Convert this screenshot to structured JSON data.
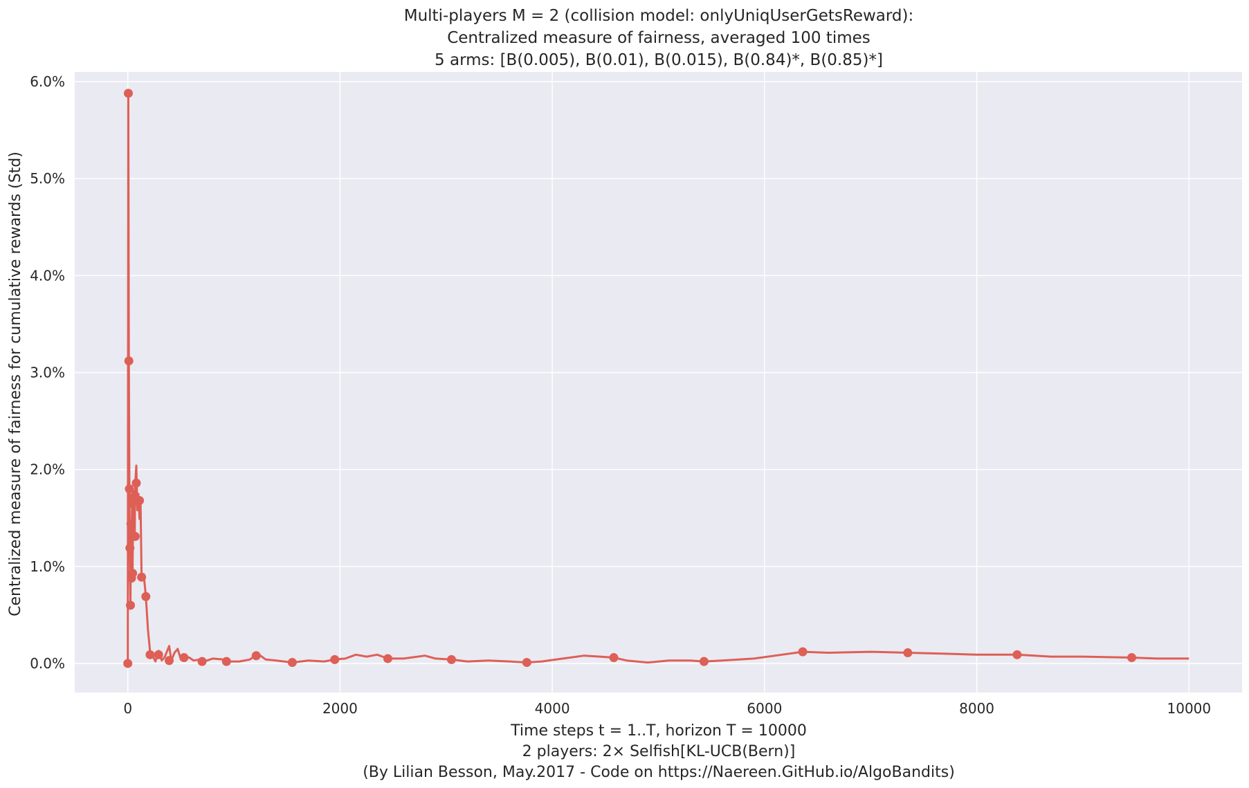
{
  "chart_data": {
    "type": "line",
    "title_lines": [
      "Multi-players M = 2 (collision model: onlyUniqUserGetsReward):",
      "Centralized measure of fairness, averaged 100 times",
      "5 arms: [B(0.005), B(0.01), B(0.015), B(0.84)*, B(0.85)*]"
    ],
    "xlabel_lines": [
      "Time steps t = 1..T, horizon T = 10000",
      "2 players: 2× Selfish[KL-UCB(Bern)]",
      "(By Lilian Besson, May.2017 - Code on https://Naereen.GitHub.io/AlgoBandits)"
    ],
    "ylabel": "Centralized measure of fairness for cumulative rewards (Std)",
    "xlim": [
      -500,
      10500
    ],
    "ylim": [
      -0.003,
      0.061
    ],
    "x_ticks": [
      0,
      2000,
      4000,
      6000,
      8000,
      10000
    ],
    "x_tick_labels": [
      "0",
      "2000",
      "4000",
      "6000",
      "8000",
      "10000"
    ],
    "y_ticks": [
      0.0,
      0.01,
      0.02,
      0.03,
      0.04,
      0.05,
      0.06
    ],
    "y_tick_labels": [
      "0.0%",
      "1.0%",
      "2.0%",
      "3.0%",
      "4.0%",
      "5.0%",
      "6.0%"
    ],
    "grid": true,
    "background_color": "#EAEAF2",
    "grid_color": "#FFFFFF",
    "series": [
      {
        "color": "#DD5F56",
        "line_points": [
          [
            0,
            0.0
          ],
          [
            5,
            0.0588
          ],
          [
            10,
            0.0312
          ],
          [
            15,
            0.018
          ],
          [
            20,
            0.0119
          ],
          [
            25,
            0.006
          ],
          [
            30,
            0.0144
          ],
          [
            35,
            0.0088
          ],
          [
            40,
            0.0165
          ],
          [
            45,
            0.0093
          ],
          [
            50,
            0.0178
          ],
          [
            55,
            0.0148
          ],
          [
            60,
            0.0172
          ],
          [
            65,
            0.0131
          ],
          [
            70,
            0.0186
          ],
          [
            80,
            0.0204
          ],
          [
            90,
            0.0158
          ],
          [
            100,
            0.0175
          ],
          [
            110,
            0.0149
          ],
          [
            120,
            0.0168
          ],
          [
            130,
            0.0089
          ],
          [
            150,
            0.0092
          ],
          [
            170,
            0.0069
          ],
          [
            190,
            0.0035
          ],
          [
            210,
            0.0012
          ],
          [
            230,
            0.0009
          ],
          [
            260,
            0.0002
          ],
          [
            290,
            0.0013
          ],
          [
            320,
            0.0003
          ],
          [
            350,
            0.0007
          ],
          [
            390,
            0.0018
          ],
          [
            410,
            0.0003
          ],
          [
            440,
            0.0011
          ],
          [
            470,
            0.0015
          ],
          [
            500,
            0.0004
          ],
          [
            530,
            0.0007
          ],
          [
            580,
            0.0006
          ],
          [
            620,
            0.0003
          ],
          [
            680,
            0.0004
          ],
          [
            720,
            0.0002
          ],
          [
            800,
            0.0005
          ],
          [
            900,
            0.0004
          ],
          [
            950,
            0.0002
          ],
          [
            1050,
            0.0002
          ],
          [
            1150,
            0.0004
          ],
          [
            1200,
            0.0008
          ],
          [
            1250,
            0.0008
          ],
          [
            1300,
            0.0004
          ],
          [
            1400,
            0.0003
          ],
          [
            1550,
            0.0001
          ],
          [
            1700,
            0.0003
          ],
          [
            1850,
            0.0002
          ],
          [
            1950,
            0.0004
          ],
          [
            2050,
            0.0005
          ],
          [
            2150,
            0.0009
          ],
          [
            2250,
            0.0007
          ],
          [
            2350,
            0.0009
          ],
          [
            2450,
            0.0005
          ],
          [
            2600,
            0.0005
          ],
          [
            2800,
            0.0008
          ],
          [
            2900,
            0.0005
          ],
          [
            3050,
            0.0004
          ],
          [
            3200,
            0.0002
          ],
          [
            3400,
            0.0003
          ],
          [
            3600,
            0.0002
          ],
          [
            3760,
            0.0001
          ],
          [
            3900,
            0.0002
          ],
          [
            4100,
            0.0005
          ],
          [
            4300,
            0.0008
          ],
          [
            4450,
            0.0007
          ],
          [
            4580,
            0.0006
          ],
          [
            4700,
            0.0003
          ],
          [
            4900,
            0.0001
          ],
          [
            5100,
            0.0003
          ],
          [
            5300,
            0.0003
          ],
          [
            5430,
            0.0002
          ],
          [
            5600,
            0.0003
          ],
          [
            5900,
            0.0005
          ],
          [
            6100,
            0.0008
          ],
          [
            6360,
            0.0012
          ],
          [
            6600,
            0.0011
          ],
          [
            7000,
            0.0012
          ],
          [
            7350,
            0.0011
          ],
          [
            7700,
            0.001
          ],
          [
            8000,
            0.0009
          ],
          [
            8380,
            0.0009
          ],
          [
            8700,
            0.0007
          ],
          [
            9000,
            0.0007
          ],
          [
            9460,
            0.0006
          ],
          [
            9700,
            0.0005
          ],
          [
            10000,
            0.0005
          ]
        ],
        "markers": [
          [
            5,
            0.0588
          ],
          [
            10,
            0.0312
          ],
          [
            15,
            0.018
          ],
          [
            20,
            0.0119
          ],
          [
            25,
            0.006
          ],
          [
            30,
            0.0144
          ],
          [
            35,
            0.0088
          ],
          [
            40,
            0.0165
          ],
          [
            45,
            0.0093
          ],
          [
            0,
            0.0
          ],
          [
            60,
            0.0172
          ],
          [
            70,
            0.0131
          ],
          [
            80,
            0.0186
          ],
          [
            110,
            0.0168
          ],
          [
            130,
            0.0089
          ],
          [
            170,
            0.0069
          ],
          [
            210,
            0.0009
          ],
          [
            290,
            0.0009
          ],
          [
            390,
            0.0003
          ],
          [
            530,
            0.0006
          ],
          [
            700,
            0.0002
          ],
          [
            930,
            0.0002
          ],
          [
            1210,
            0.0008
          ],
          [
            1550,
            0.0001
          ],
          [
            1950,
            0.0004
          ],
          [
            2450,
            0.0005
          ],
          [
            3050,
            0.0004
          ],
          [
            3760,
            0.0001
          ],
          [
            4580,
            0.0006
          ],
          [
            5430,
            0.0002
          ],
          [
            6360,
            0.0012
          ],
          [
            7350,
            0.0011
          ],
          [
            8380,
            0.0009
          ],
          [
            9460,
            0.0006
          ]
        ]
      }
    ]
  }
}
